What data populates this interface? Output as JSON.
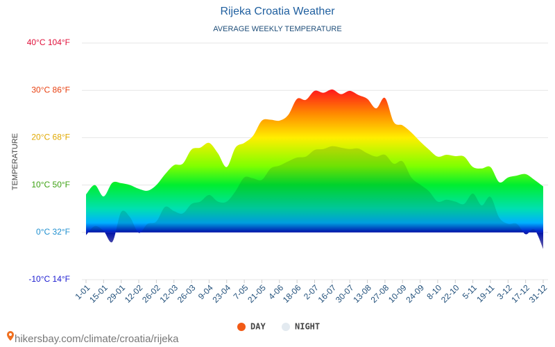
{
  "chart_data": {
    "type": "area",
    "title": "Rijeka Croatia Weather",
    "subtitle": "AVERAGE WEEKLY TEMPERATURE",
    "y_label": "TEMPERATURE",
    "footer": "hikersbay.com/climate/croatia/rijeka",
    "categories": [
      "1-01",
      null,
      "15-01",
      null,
      "29-01",
      null,
      "12-02",
      null,
      "26-02",
      null,
      "12-03",
      null,
      "26-03",
      null,
      "9-04",
      null,
      "23-04",
      null,
      "7-05",
      null,
      "21-05",
      null,
      "4-06",
      null,
      "18-06",
      null,
      "2-07",
      null,
      "16-07",
      null,
      "30-07",
      null,
      "13-08",
      null,
      "27-08",
      null,
      "10-09",
      null,
      "24-09",
      null,
      "8-10",
      null,
      "22-10",
      null,
      "5-11",
      null,
      "19-11",
      null,
      "3-12",
      null,
      "17-12",
      null,
      "31-12"
    ],
    "series": [
      {
        "name": "DAY",
        "color": "#f25a16",
        "values": [
          8,
          10,
          7.6,
          10.5,
          10.4,
          10,
          9.2,
          8.8,
          10,
          12.3,
          14.2,
          14.5,
          17.5,
          17.9,
          18.9,
          16.7,
          13.8,
          17.9,
          18.9,
          20.4,
          23.6,
          23.8,
          23.6,
          24.8,
          28.2,
          28,
          29.9,
          29.5,
          30.2,
          29.2,
          29.9,
          29,
          28.2,
          26.2,
          28.4,
          23.3,
          22.6,
          21.1,
          19.2,
          17.5,
          16,
          16.4,
          16.1,
          16,
          13.8,
          13.5,
          13.8,
          10.6,
          11.6,
          12,
          12.3,
          11.1,
          9.7
        ]
      },
      {
        "name": "NIGHT",
        "color": "#e3eaf0",
        "values": [
          -0.6,
          1.3,
          0.3,
          -2,
          4.3,
          3.2,
          -0.1,
          1.8,
          2.3,
          5.4,
          4.5,
          4,
          6,
          6.5,
          7.9,
          6.5,
          6.5,
          8.7,
          11.6,
          11.4,
          11.1,
          13.5,
          14.1,
          15,
          15.8,
          16,
          17.4,
          17.6,
          18.2,
          17.9,
          17.6,
          17.7,
          16.7,
          16,
          16.4,
          14.5,
          15,
          11.6,
          10.1,
          8.7,
          6.5,
          6.9,
          6.5,
          6,
          8.2,
          5.7,
          7.5,
          3.1,
          1.8,
          1.8,
          -0.4,
          0.6,
          -3.5
        ]
      }
    ],
    "ylim": [
      -10,
      40
    ],
    "yticks": [
      {
        "value": -10,
        "label": "-10°C 14°F"
      },
      {
        "value": 0,
        "label": "0°C 32°F"
      },
      {
        "value": 10,
        "label": "10°C 50°F"
      },
      {
        "value": 20,
        "label": "20°C 68°F"
      },
      {
        "value": 30,
        "label": "30°C 86°F"
      },
      {
        "value": 40,
        "label": "40°C 104°F"
      }
    ],
    "grid": true
  }
}
